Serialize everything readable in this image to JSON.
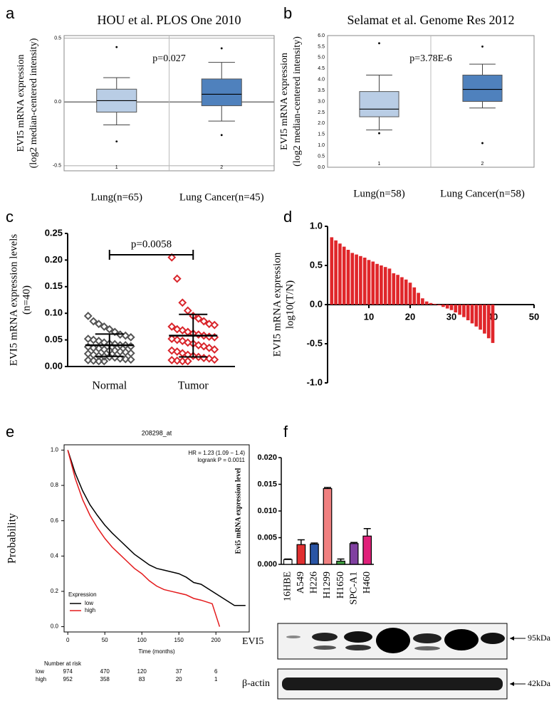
{
  "chart_data": [
    {
      "panel": "a",
      "type": "box",
      "title": "HOU et al. PLOS One 2010",
      "ylabel": [
        "EVI5 mRNA expression",
        "(log2 median-centered intensity)"
      ],
      "annotation": "p=0.027",
      "categories": [
        "1",
        "2"
      ],
      "group_labels": [
        "Lung(n=65)",
        "Lung Cancer(n=45)"
      ],
      "ylim": [
        -0.54,
        0.52
      ],
      "yticks": [
        -0.5,
        {
          "value": 0,
          "label": "0.0"
        },
        0.5
      ],
      "grid": true,
      "boxes": [
        {
          "color": "#b9cde5",
          "whisker_low": -0.18,
          "q1": -0.08,
          "median": 0.01,
          "q3": 0.1,
          "whisker_high": 0.19,
          "outliers": [
            0.43,
            -0.31
          ]
        },
        {
          "color": "#4f81bd",
          "whisker_low": -0.15,
          "q1": -0.03,
          "median": 0.06,
          "q3": 0.18,
          "whisker_high": 0.31,
          "outliers": [
            0.42,
            -0.26
          ]
        }
      ]
    },
    {
      "panel": "b",
      "type": "box",
      "title": "Selamat et al. Genome Res 2012",
      "ylabel": [
        "EVI5 mRNA expression",
        "(log2 median-centered intensity)"
      ],
      "annotation": "p=3.78E-6",
      "categories": [
        "1",
        "2"
      ],
      "group_labels": [
        "Lung(n=58)",
        "Lung Cancer(n=58)"
      ],
      "ylim": [
        0,
        6
      ],
      "yticks": [
        {
          "value": 0,
          "label": "0.0"
        },
        0.5,
        {
          "value": 1,
          "label": "1.0"
        },
        1.5,
        {
          "value": 2,
          "label": "2.0"
        },
        2.5,
        {
          "value": 3,
          "label": "3.0"
        },
        3.5,
        {
          "value": 4,
          "label": "4.0"
        },
        4.5,
        {
          "value": 5,
          "label": "5.0"
        },
        5.5,
        {
          "value": 6,
          "label": "6.0"
        }
      ],
      "grid": false,
      "boxes": [
        {
          "color": "#b9cde5",
          "whisker_low": 1.7,
          "q1": 2.3,
          "median": 2.65,
          "q3": 3.45,
          "whisker_high": 4.2,
          "outliers": [
            5.65,
            1.55
          ]
        },
        {
          "color": "#4f81bd",
          "whisker_low": 2.7,
          "q1": 3.0,
          "median": 3.55,
          "q3": 4.2,
          "whisker_high": 4.7,
          "outliers": [
            5.5,
            1.1
          ]
        }
      ]
    },
    {
      "panel": "c",
      "type": "strip",
      "ylabel": [
        "EVI5 mRNA expression levels",
        "(n=40)"
      ],
      "annotation": "p=0.0058",
      "categories": [
        "Normal",
        "Tumor"
      ],
      "ylim": [
        0,
        0.25
      ],
      "yticks": [
        {
          "value": 0,
          "label": "0.00"
        },
        0.05,
        {
          "value": 0.1,
          "label": "0.10"
        },
        0.15,
        {
          "value": 0.2,
          "label": "0.20"
        },
        0.25
      ],
      "series": [
        {
          "color": "#555555",
          "mean": 0.04,
          "sd": 0.021,
          "values": [
            0.095,
            0.085,
            0.08,
            0.075,
            0.07,
            0.065,
            0.06,
            0.058,
            0.055,
            0.052,
            0.05,
            0.048,
            0.045,
            0.043,
            0.042,
            0.04,
            0.04,
            0.038,
            0.037,
            0.035,
            0.034,
            0.032,
            0.03,
            0.03,
            0.028,
            0.027,
            0.025,
            0.024,
            0.022,
            0.02,
            0.019,
            0.018,
            0.017,
            0.015,
            0.014,
            0.013,
            0.012,
            0.011,
            0.01,
            0.01
          ]
        },
        {
          "color": "#d9262c",
          "mean": 0.058,
          "sd": 0.04,
          "values": [
            0.205,
            0.165,
            0.12,
            0.105,
            0.095,
            0.09,
            0.085,
            0.08,
            0.078,
            0.075,
            0.07,
            0.068,
            0.065,
            0.062,
            0.06,
            0.058,
            0.056,
            0.055,
            0.052,
            0.05,
            0.048,
            0.045,
            0.043,
            0.04,
            0.038,
            0.035,
            0.032,
            0.03,
            0.028,
            0.025,
            0.022,
            0.02,
            0.018,
            0.016,
            0.015,
            0.013,
            0.012,
            0.011,
            0.01,
            0.01
          ]
        }
      ]
    },
    {
      "panel": "d",
      "type": "waterfall",
      "ylabel": [
        "EVI5 mRNA expression",
        "log10(T/N)"
      ],
      "color": "#e0262a",
      "x": [
        1,
        2,
        3,
        4,
        5,
        6,
        7,
        8,
        9,
        10,
        11,
        12,
        13,
        14,
        15,
        16,
        17,
        18,
        19,
        20,
        21,
        22,
        23,
        24,
        25,
        26,
        27,
        28,
        29,
        30,
        31,
        32,
        33,
        34,
        35,
        36,
        37,
        38,
        39,
        40
      ],
      "values": [
        0.86,
        0.82,
        0.78,
        0.74,
        0.7,
        0.66,
        0.64,
        0.62,
        0.6,
        0.57,
        0.55,
        0.52,
        0.5,
        0.48,
        0.46,
        0.4,
        0.38,
        0.35,
        0.32,
        0.28,
        0.22,
        0.15,
        0.08,
        0.04,
        0.02,
        0.01,
        -0.01,
        -0.03,
        -0.05,
        -0.07,
        -0.1,
        -0.13,
        -0.16,
        -0.2,
        -0.24,
        -0.28,
        -0.32,
        -0.37,
        -0.43,
        -0.49
      ],
      "xlim": [
        0,
        50
      ],
      "xticks": [
        10,
        20,
        30,
        40,
        50
      ],
      "ylim": [
        -1,
        1
      ],
      "yticks": [
        {
          "value": -1,
          "label": "-1.0"
        },
        -0.5,
        {
          "value": 0,
          "label": "0.0"
        },
        0.5,
        {
          "value": 1,
          "label": "1.0"
        }
      ]
    },
    {
      "panel": "e",
      "type": "line",
      "title": "208298_at",
      "annotations": [
        "HR = 1.23 (1.09 − 1.4)",
        "logrank P = 0.0011"
      ],
      "xlabel": "Time (months)",
      "ylabel": "Probability",
      "xlim": [
        -5,
        245
      ],
      "xticks": [
        0,
        50,
        100,
        150,
        200
      ],
      "ylim": [
        -0.03,
        1.03
      ],
      "yticks": [
        {
          "value": 0,
          "label": "0.0"
        },
        0.2,
        0.4,
        0.6,
        0.8,
        {
          "value": 1,
          "label": "1.0"
        }
      ],
      "legend_title": "Expression",
      "legend": "bottom-left",
      "series": [
        {
          "name": "low",
          "color": "#000000",
          "x": [
            0,
            10,
            20,
            30,
            40,
            50,
            60,
            70,
            80,
            90,
            100,
            110,
            120,
            130,
            140,
            150,
            160,
            170,
            180,
            225,
            240
          ],
          "values": [
            1,
            0.87,
            0.77,
            0.69,
            0.63,
            0.575,
            0.53,
            0.49,
            0.45,
            0.41,
            0.38,
            0.35,
            0.33,
            0.32,
            0.31,
            0.3,
            0.28,
            0.25,
            0.24,
            0.12,
            0.12
          ]
        },
        {
          "name": "high",
          "color": "#e41a1c",
          "x": [
            0,
            10,
            20,
            30,
            40,
            50,
            60,
            70,
            80,
            90,
            100,
            110,
            120,
            130,
            140,
            150,
            160,
            170,
            180,
            195,
            205
          ],
          "values": [
            1,
            0.84,
            0.72,
            0.63,
            0.56,
            0.5,
            0.45,
            0.41,
            0.37,
            0.33,
            0.3,
            0.26,
            0.23,
            0.21,
            0.2,
            0.19,
            0.18,
            0.16,
            0.15,
            0.13,
            0
          ]
        }
      ],
      "risk_table": {
        "title": "Number at risk",
        "rows": [
          {
            "name": "low",
            "values": [
              974,
              470,
              120,
              37,
              6
            ]
          },
          {
            "name": "high",
            "values": [
              952,
              358,
              83,
              20,
              1
            ]
          }
        ]
      }
    },
    {
      "panel": "f",
      "type": "bar",
      "ylabel": "Evi5 mRNA expression level",
      "categories": [
        "16HBE",
        "A549",
        "H226",
        "H1299",
        "H1650",
        "SPC-A1",
        "H460"
      ],
      "values": [
        0.0009,
        0.0037,
        0.0038,
        0.0142,
        0.0006,
        0.0039,
        0.0053
      ],
      "errors": [
        0.0001,
        0.0009,
        0.0002,
        0.0002,
        0.0004,
        0.0002,
        0.0014
      ],
      "colors": [
        "#ffffff",
        "#e03030",
        "#2a55a5",
        "#f08080",
        "#40a040",
        "#8040a0",
        "#e0207a"
      ],
      "ylim": [
        0,
        0.02
      ],
      "yticks": [
        {
          "value": 0,
          "label": "0.000"
        },
        0.005,
        {
          "value": 0.01,
          "label": "0.010"
        },
        0.015,
        {
          "value": 0.02,
          "label": "0.020"
        }
      ],
      "blot": {
        "labels": [
          "EVI5",
          "β-actin"
        ],
        "sizes": [
          "95kDa",
          "42kDa"
        ]
      }
    }
  ]
}
